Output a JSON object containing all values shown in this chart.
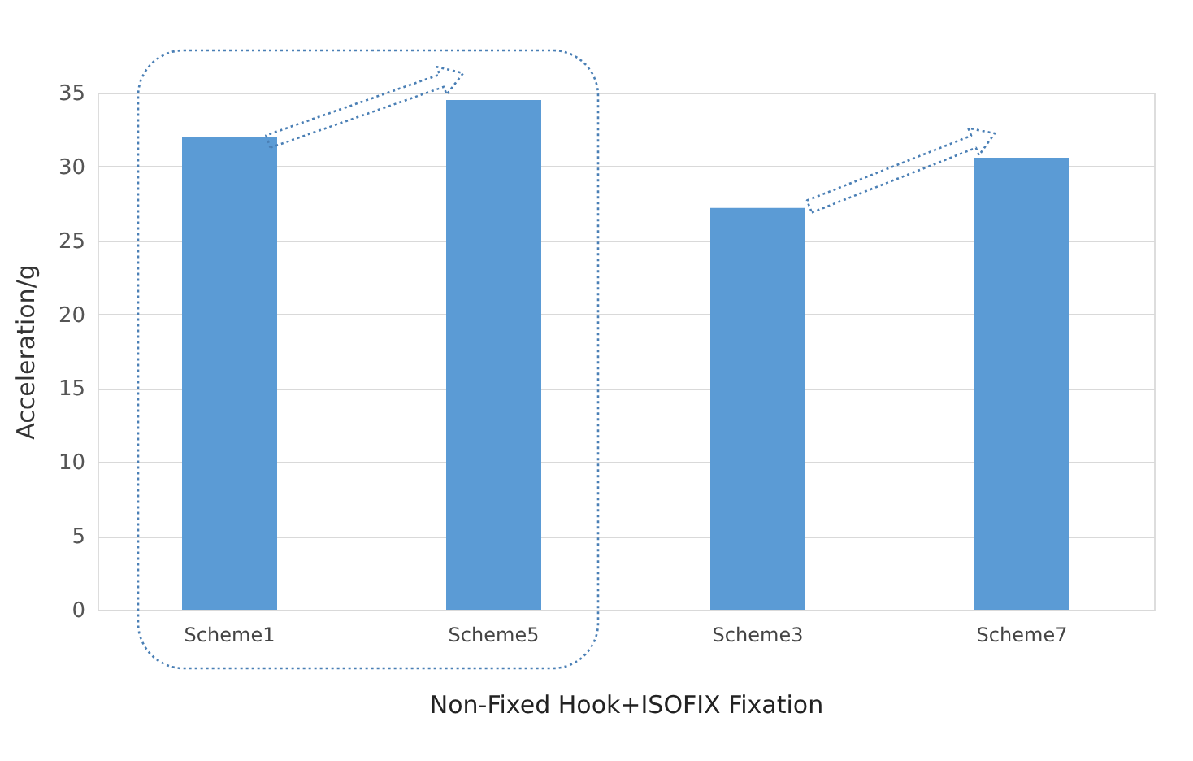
{
  "chart_data": {
    "type": "bar",
    "categories": [
      "Scheme1",
      "Scheme5",
      "Scheme3",
      "Scheme7"
    ],
    "values": [
      32,
      34.5,
      27.2,
      30.6
    ],
    "color": "#5b9bd5",
    "xlabel": "Non-Fixed Hook+ISOFIX Fixation",
    "ylabel": "Acceleration/g",
    "ylim": [
      0,
      35
    ],
    "yticks": [
      0,
      5,
      10,
      15,
      20,
      25,
      30,
      35
    ],
    "grid": "y"
  }
}
